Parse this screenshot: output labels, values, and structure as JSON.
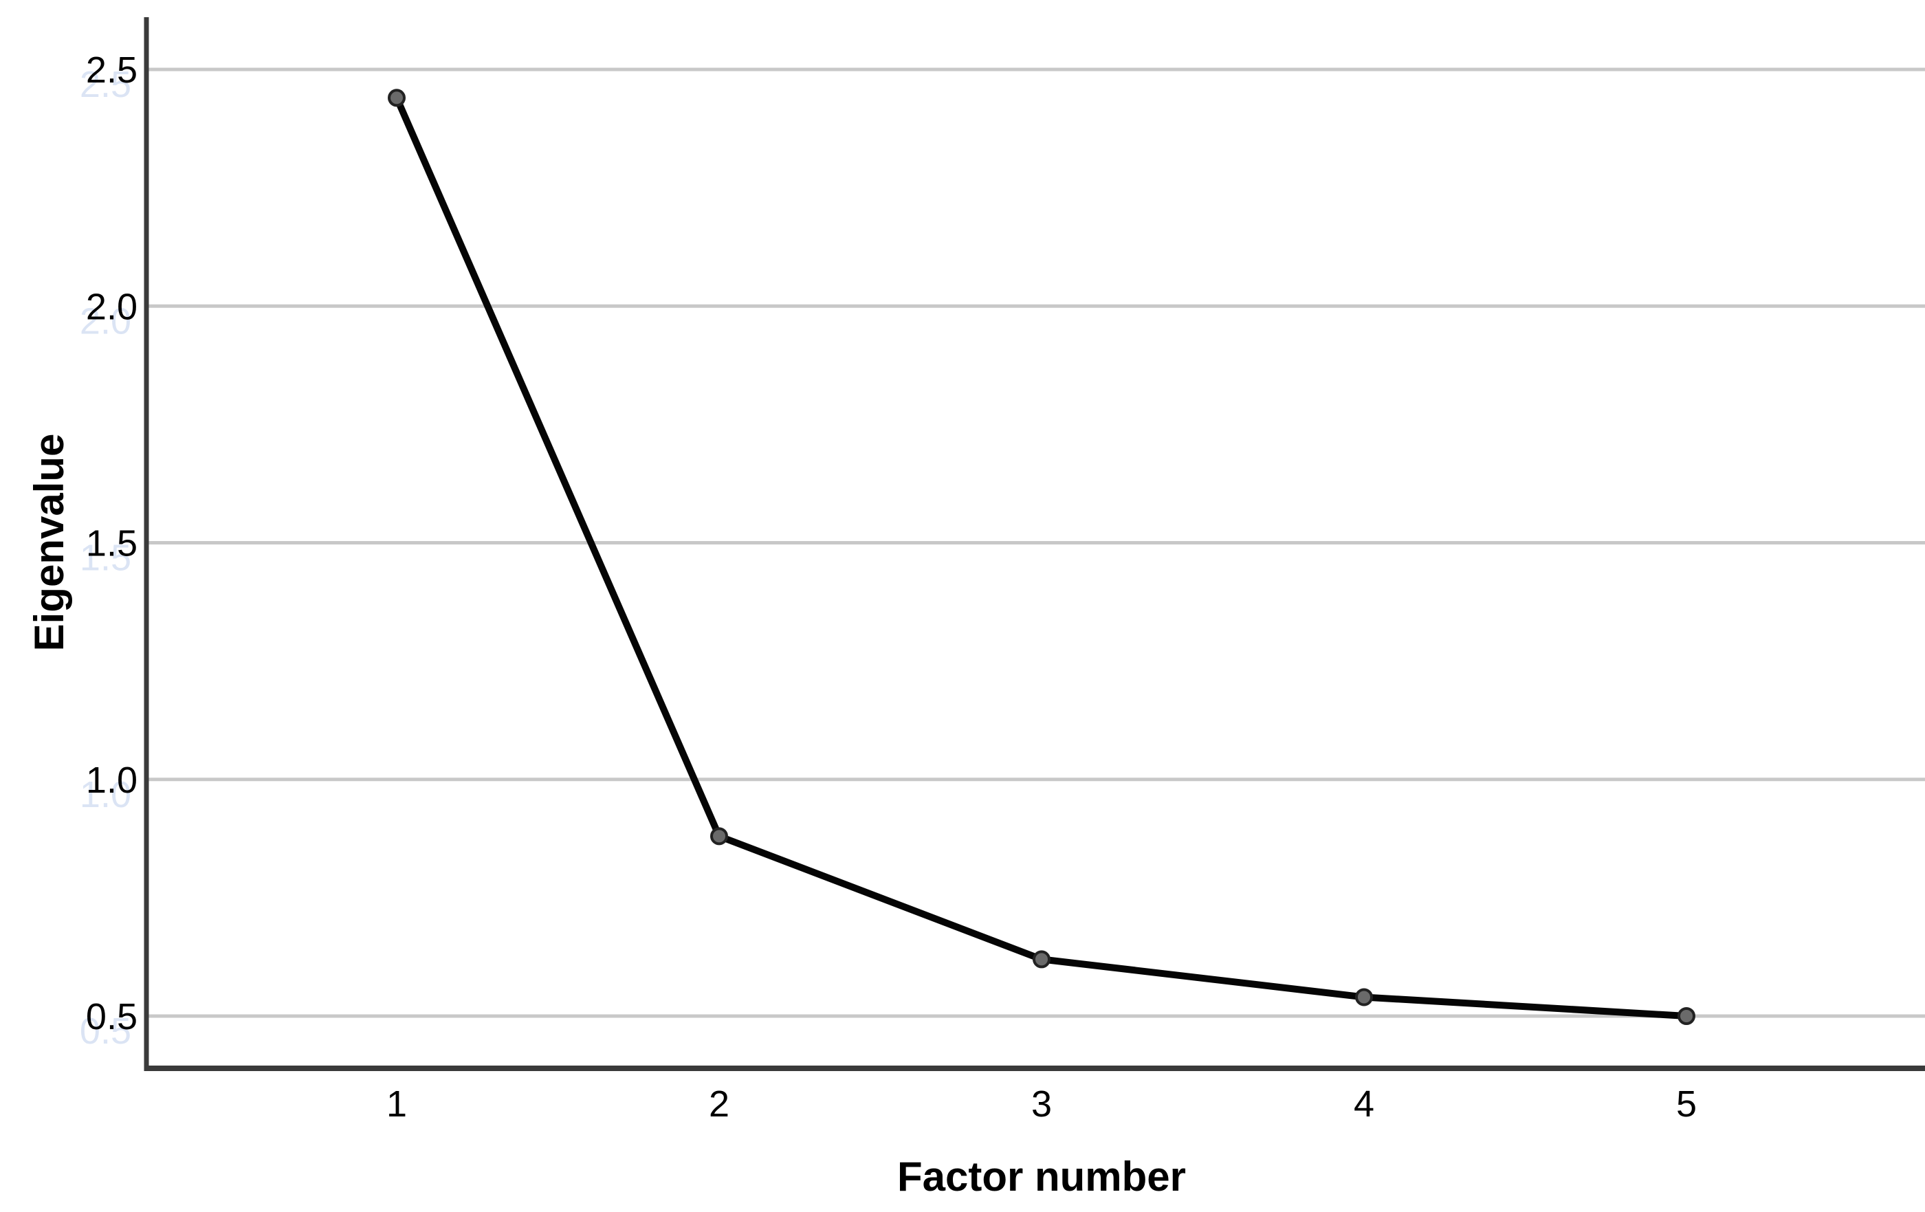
{
  "chart_data": {
    "type": "line",
    "title": "",
    "xlabel": "Factor number",
    "ylabel": "Eigenvalue",
    "x": [
      1,
      2,
      3,
      4,
      5
    ],
    "x_ticks": [
      "1",
      "2",
      "3",
      "4",
      "5"
    ],
    "y_ticks": [
      "0.5",
      "1.0",
      "1.5",
      "2.0",
      "2.5"
    ],
    "y_tick_values": [
      0.5,
      1.0,
      1.5,
      2.0,
      2.5
    ],
    "series": [
      {
        "name": "Eigenvalue",
        "values": [
          2.44,
          0.88,
          0.62,
          0.54,
          0.5
        ]
      }
    ],
    "ylim": [
      0.39,
      2.61
    ],
    "xlim": [
      0.22,
      5.78
    ],
    "grid": "horizontal-only",
    "legend": "none",
    "marker": "filled-circle",
    "colors": {
      "background": "#ffffff",
      "line": "#050505",
      "marker_fill": "#6a6a6a",
      "marker_stroke": "#222222",
      "gridline": "#c8c8c8",
      "axis": "#3a3a3a",
      "text": "#000000",
      "y_tick_echo": "#dbe4f4"
    }
  }
}
